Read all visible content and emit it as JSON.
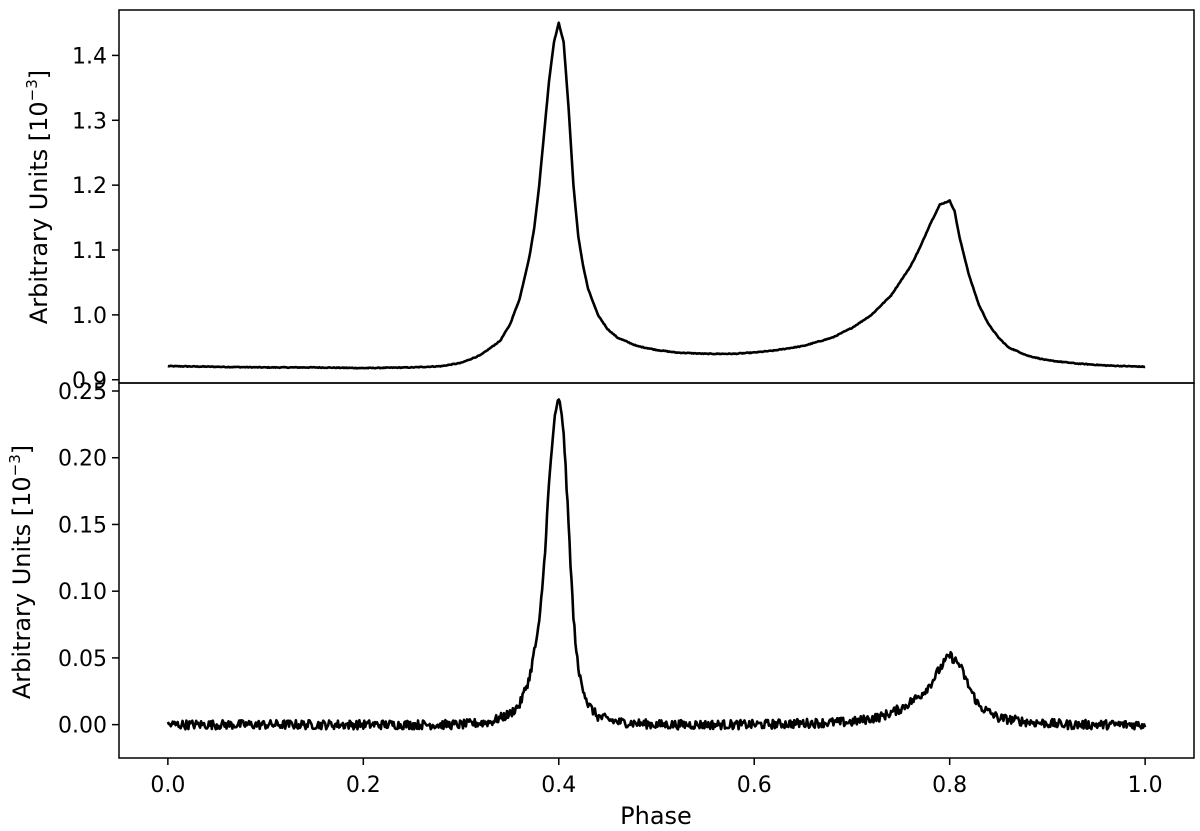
{
  "chart_data": [
    {
      "type": "line",
      "panel": "top",
      "title": "",
      "xlabel": "",
      "ylabel": "Arbitrary Units [10",
      "ylabel_exponent": "−3",
      "ylabel_close": "]",
      "xlim": [
        -0.05,
        1.05
      ],
      "ylim": [
        0.895,
        1.47
      ],
      "grid": false,
      "legend": "none",
      "line_color": "#000000",
      "noise": 0.0006,
      "yticks": [
        0.9,
        1.0,
        1.1,
        1.2,
        1.3,
        1.4
      ],
      "ytick_labels": [
        "0.9",
        "1.0",
        "1.1",
        "1.2",
        "1.3",
        "1.4"
      ],
      "series": [
        {
          "x": [
            0.0,
            0.05,
            0.1,
            0.15,
            0.2,
            0.25,
            0.28,
            0.3,
            0.32,
            0.34,
            0.35,
            0.36,
            0.37,
            0.375,
            0.38,
            0.385,
            0.39,
            0.395,
            0.4,
            0.405,
            0.41,
            0.415,
            0.42,
            0.425,
            0.43,
            0.44,
            0.45,
            0.46,
            0.48,
            0.5,
            0.52,
            0.55,
            0.58,
            0.6,
            0.62,
            0.65,
            0.68,
            0.7,
            0.72,
            0.74,
            0.76,
            0.77,
            0.78,
            0.79,
            0.8,
            0.805,
            0.81,
            0.82,
            0.83,
            0.84,
            0.85,
            0.86,
            0.88,
            0.9,
            0.93,
            0.96,
            1.0
          ],
          "y": [
            0.921,
            0.92,
            0.919,
            0.919,
            0.918,
            0.919,
            0.921,
            0.926,
            0.938,
            0.96,
            0.985,
            1.025,
            1.09,
            1.135,
            1.2,
            1.28,
            1.36,
            1.42,
            1.45,
            1.42,
            1.32,
            1.2,
            1.12,
            1.075,
            1.04,
            1.0,
            0.978,
            0.965,
            0.952,
            0.946,
            0.942,
            0.94,
            0.94,
            0.942,
            0.945,
            0.952,
            0.965,
            0.98,
            1.0,
            1.03,
            1.075,
            1.105,
            1.14,
            1.17,
            1.176,
            1.16,
            1.12,
            1.06,
            1.015,
            0.985,
            0.965,
            0.95,
            0.937,
            0.93,
            0.925,
            0.922,
            0.92
          ]
        }
      ]
    },
    {
      "type": "line",
      "panel": "bottom",
      "title": "",
      "xlabel": "Phase",
      "ylabel": "Arbitrary Units [10",
      "ylabel_exponent": "−3",
      "ylabel_close": "]",
      "xlim": [
        -0.05,
        1.05
      ],
      "ylim": [
        -0.025,
        0.256
      ],
      "grid": false,
      "legend": "none",
      "line_color": "#000000",
      "noise": 0.0035,
      "yticks": [
        0.0,
        0.05,
        0.1,
        0.15,
        0.2,
        0.25
      ],
      "ytick_labels": [
        "0.00",
        "0.05",
        "0.10",
        "0.15",
        "0.20",
        "0.25"
      ],
      "xticks": [
        0.0,
        0.2,
        0.4,
        0.6,
        0.8,
        1.0
      ],
      "xtick_labels": [
        "0.0",
        "0.2",
        "0.4",
        "0.6",
        "0.8",
        "1.0"
      ],
      "series": [
        {
          "x": [
            0.0,
            0.1,
            0.2,
            0.3,
            0.33,
            0.35,
            0.36,
            0.37,
            0.38,
            0.385,
            0.39,
            0.395,
            0.4,
            0.405,
            0.41,
            0.415,
            0.42,
            0.43,
            0.44,
            0.46,
            0.5,
            0.6,
            0.7,
            0.73,
            0.75,
            0.77,
            0.78,
            0.79,
            0.8,
            0.81,
            0.82,
            0.83,
            0.85,
            0.88,
            0.92,
            1.0
          ],
          "y": [
            0.0,
            0.0,
            0.0,
            0.0,
            0.002,
            0.008,
            0.015,
            0.035,
            0.075,
            0.12,
            0.18,
            0.225,
            0.245,
            0.22,
            0.15,
            0.08,
            0.04,
            0.015,
            0.006,
            0.002,
            0.0,
            0.0,
            0.002,
            0.006,
            0.012,
            0.022,
            0.03,
            0.042,
            0.052,
            0.045,
            0.028,
            0.014,
            0.005,
            0.002,
            0.0,
            0.0
          ]
        }
      ]
    }
  ]
}
